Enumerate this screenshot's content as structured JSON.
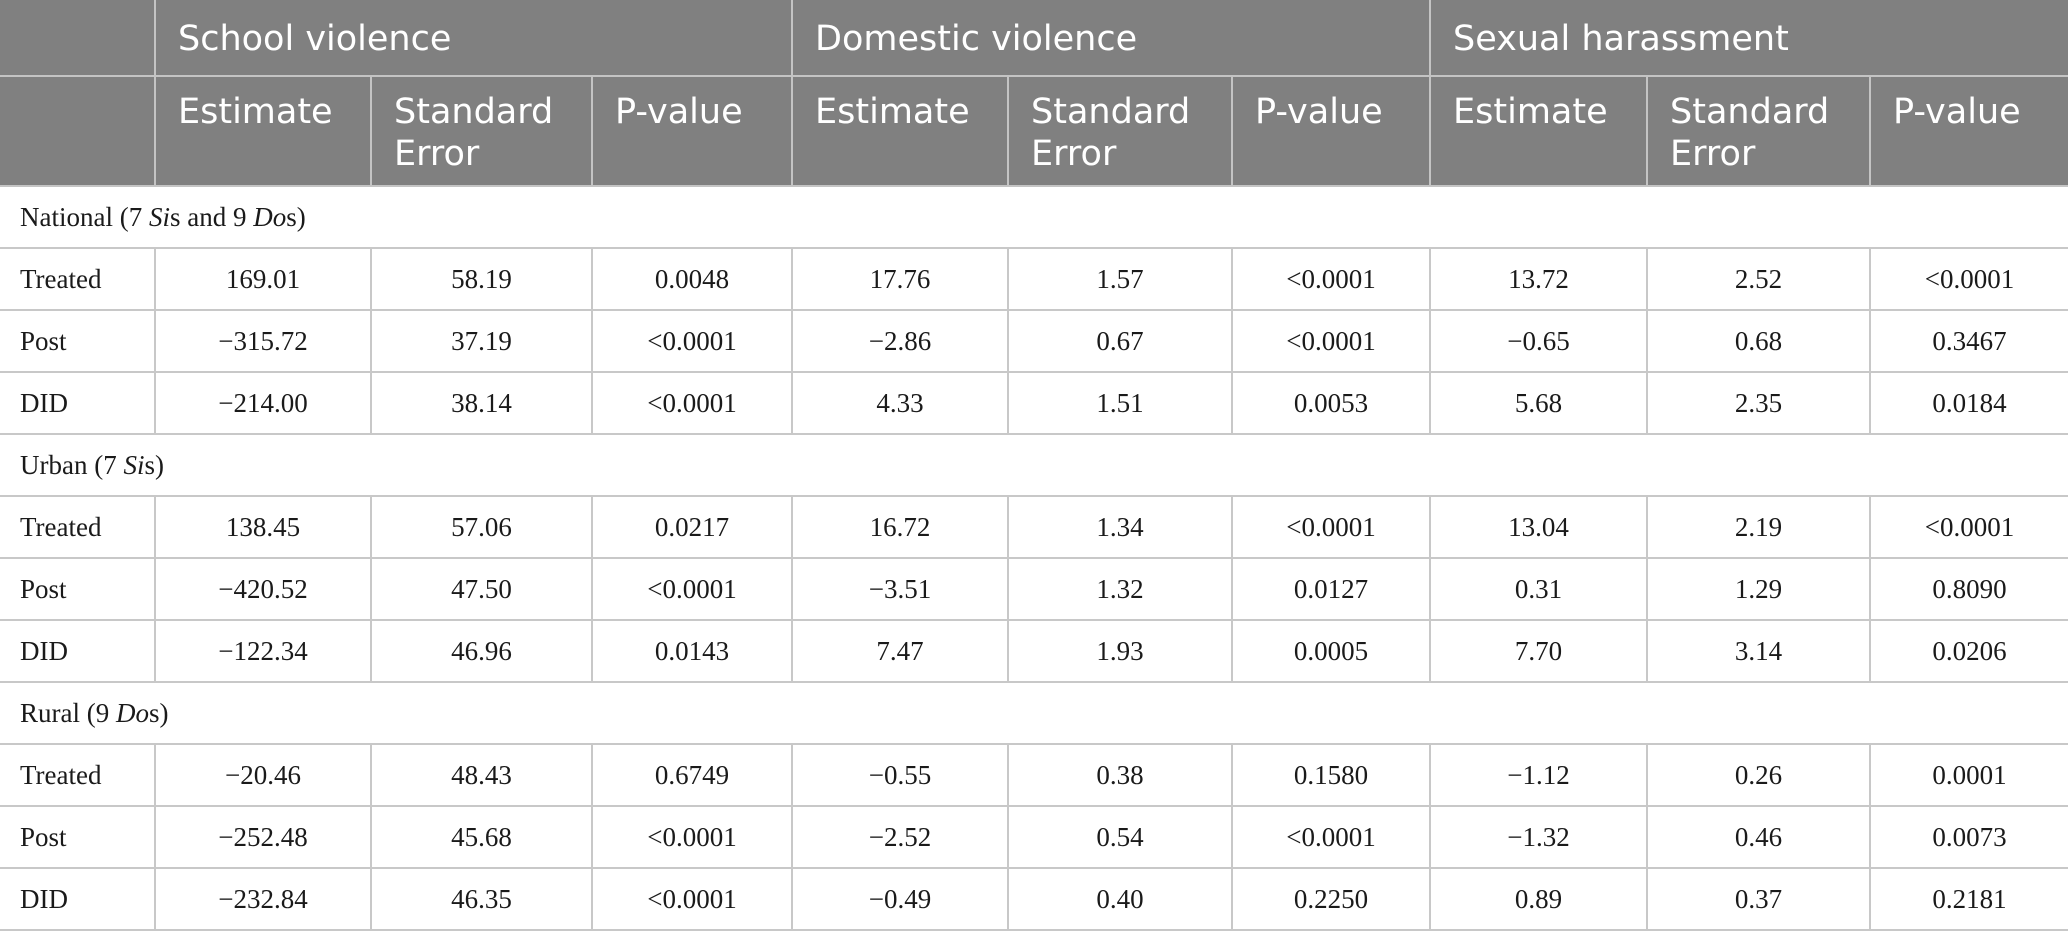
{
  "header": {
    "groups": [
      "School violence",
      "Domestic violence",
      "Sexual harassment"
    ],
    "subcolumns": [
      "Estimate",
      "Standard Error",
      "P-value"
    ]
  },
  "sections": [
    {
      "title_parts": [
        "National (7 ",
        "Si",
        "s and 9 ",
        "Do",
        "s)"
      ],
      "rows": [
        {
          "label": "Treated",
          "values": [
            "169.01",
            "58.19",
            "0.0048",
            "17.76",
            "1.57",
            "<0.0001",
            "13.72",
            "2.52",
            "<0.0001"
          ]
        },
        {
          "label": "Post",
          "values": [
            "−315.72",
            "37.19",
            "<0.0001",
            "−2.86",
            "0.67",
            "<0.0001",
            "−0.65",
            "0.68",
            "0.3467"
          ]
        },
        {
          "label": "DID",
          "values": [
            "−214.00",
            "38.14",
            "<0.0001",
            "4.33",
            "1.51",
            "0.0053",
            "5.68",
            "2.35",
            "0.0184"
          ]
        }
      ]
    },
    {
      "title_parts": [
        "Urban (7 ",
        "Si",
        "s)"
      ],
      "rows": [
        {
          "label": "Treated",
          "values": [
            "138.45",
            "57.06",
            "0.0217",
            "16.72",
            "1.34",
            "<0.0001",
            "13.04",
            "2.19",
            "<0.0001"
          ]
        },
        {
          "label": "Post",
          "values": [
            "−420.52",
            "47.50",
            "<0.0001",
            "−3.51",
            "1.32",
            "0.0127",
            "0.31",
            "1.29",
            "0.8090"
          ]
        },
        {
          "label": "DID",
          "values": [
            "−122.34",
            "46.96",
            "0.0143",
            "7.47",
            "1.93",
            "0.0005",
            "7.70",
            "3.14",
            "0.0206"
          ]
        }
      ]
    },
    {
      "title_parts": [
        "Rural (9 ",
        "Do",
        "s)"
      ],
      "rows": [
        {
          "label": "Treated",
          "values": [
            "−20.46",
            "48.43",
            "0.6749",
            "−0.55",
            "0.38",
            "0.1580",
            "−1.12",
            "0.26",
            "0.0001"
          ]
        },
        {
          "label": "Post",
          "values": [
            "−252.48",
            "45.68",
            "<0.0001",
            "−2.52",
            "0.54",
            "<0.0001",
            "−1.32",
            "0.46",
            "0.0073"
          ]
        },
        {
          "label": "DID",
          "values": [
            "−232.84",
            "46.35",
            "<0.0001",
            "−0.49",
            "0.40",
            "0.2250",
            "0.89",
            "0.37",
            "0.2181"
          ]
        }
      ]
    }
  ]
}
